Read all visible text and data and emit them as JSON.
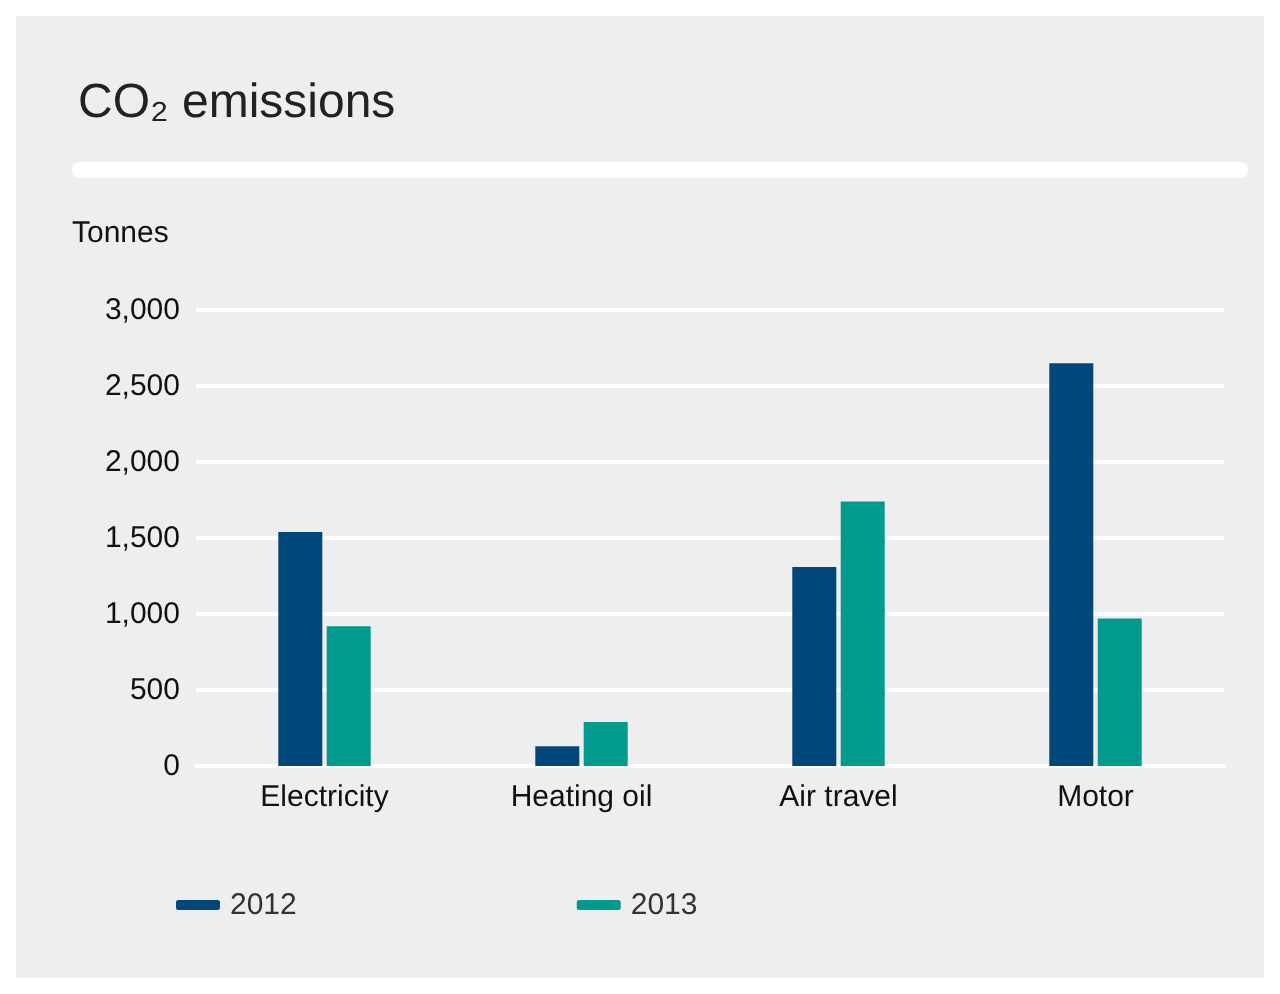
{
  "chart_data": {
    "type": "bar",
    "title": "CO₂ emissions",
    "ylabel": "Tonnes",
    "categories": [
      "Electricity",
      "Heating oil",
      "Air travel",
      "Motor"
    ],
    "series": [
      {
        "name": "2012",
        "color": "#00477a",
        "values": [
          1540,
          130,
          1310,
          2650
        ]
      },
      {
        "name": "2013",
        "color": "#009a8e",
        "values": [
          920,
          290,
          1740,
          970
        ]
      }
    ],
    "ylim": [
      0,
      3000
    ],
    "yticks": [
      0,
      500,
      {
        "value": 1000,
        "label": "1,000"
      },
      {
        "value": 1500,
        "label": "1,500"
      },
      {
        "value": 2000,
        "label": "2,000"
      },
      {
        "value": 2500,
        "label": "2,500"
      },
      {
        "value": 3000,
        "label": "3,000"
      }
    ],
    "grid": "y",
    "legend": "bottom left"
  }
}
